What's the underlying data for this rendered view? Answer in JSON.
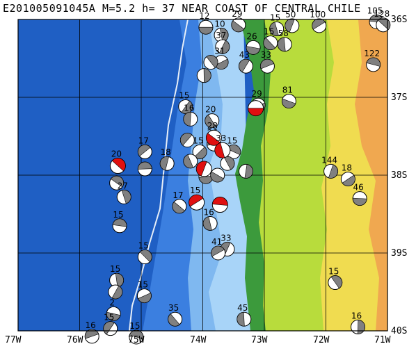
{
  "title": "E201005091045A M=5.2 h= 37 NEAR COAST OF CENTRAL CHILE",
  "x_ticks": [
    "77W",
    "76W",
    "75W",
    "74W",
    "73W",
    "72W",
    "71W"
  ],
  "y_ticks": [
    "36S",
    "37S",
    "38S",
    "39S",
    "40S"
  ],
  "colors": {
    "deep_ocean": "#1f5fc4",
    "mid_ocean": "#3b7fe0",
    "shelf": "#7fb8f0",
    "coast_shelf": "#a8d4f8",
    "lowland": "#3c9a3c",
    "plain": "#b8dc3c",
    "hills": "#f0dc50",
    "mountains": "#f0a850",
    "event": "#e01010",
    "cmt_dark": "#808080"
  },
  "events": [
    {
      "lon": -73.14,
      "lat": -37.14,
      "depth": "",
      "main": true
    },
    {
      "lon": -73.82,
      "lat": -37.52,
      "depth": "28",
      "main": true
    },
    {
      "lon": -73.68,
      "lat": -37.68,
      "depth": "33",
      "main": true
    },
    {
      "lon": -73.98,
      "lat": -37.92,
      "depth": "",
      "main": true
    },
    {
      "lon": -74.1,
      "lat": -38.35,
      "depth": "15",
      "main": true
    },
    {
      "lon": -73.72,
      "lat": -38.38,
      "depth": "",
      "main": true
    },
    {
      "lon": -75.38,
      "lat": -37.88,
      "depth": "20",
      "main": true
    }
  ],
  "cmt": [
    {
      "lon": -73.95,
      "lat": -36.1,
      "depth": "12"
    },
    {
      "lon": -73.42,
      "lat": -36.07,
      "depth": "29"
    },
    {
      "lon": -72.8,
      "lat": -36.12,
      "depth": "15"
    },
    {
      "lon": -72.55,
      "lat": -36.08,
      "depth": "50"
    },
    {
      "lon": -72.11,
      "lat": -36.08,
      "depth": "100"
    },
    {
      "lon": -71.18,
      "lat": -36.03,
      "depth": "105"
    },
    {
      "lon": -71.07,
      "lat": -36.07,
      "depth": "128"
    },
    {
      "lon": -73.7,
      "lat": -36.2,
      "depth": "10"
    },
    {
      "lon": -73.68,
      "lat": -36.35,
      "depth": "37"
    },
    {
      "lon": -73.7,
      "lat": -36.55,
      "depth": "31"
    },
    {
      "lon": -73.18,
      "lat": -36.36,
      "depth": "26"
    },
    {
      "lon": -72.9,
      "lat": -36.3,
      "depth": "15"
    },
    {
      "lon": -72.67,
      "lat": -36.32,
      "depth": "58"
    },
    {
      "lon": -73.3,
      "lat": -36.6,
      "depth": "43"
    },
    {
      "lon": -72.95,
      "lat": -36.6,
      "depth": "33"
    },
    {
      "lon": -71.23,
      "lat": -36.58,
      "depth": "122"
    },
    {
      "lon": -73.87,
      "lat": -36.55,
      "depth": ""
    },
    {
      "lon": -73.98,
      "lat": -36.72,
      "depth": ""
    },
    {
      "lon": -74.28,
      "lat": -37.12,
      "depth": "15"
    },
    {
      "lon": -73.1,
      "lat": -37.1,
      "depth": "29"
    },
    {
      "lon": -72.6,
      "lat": -37.05,
      "depth": "81"
    },
    {
      "lon": -73.85,
      "lat": -37.3,
      "depth": "20"
    },
    {
      "lon": -74.2,
      "lat": -37.28,
      "depth": "16"
    },
    {
      "lon": -74.25,
      "lat": -37.55,
      "depth": ""
    },
    {
      "lon": -73.82,
      "lat": -37.6,
      "depth": "26"
    },
    {
      "lon": -73.5,
      "lat": -37.7,
      "depth": "15"
    },
    {
      "lon": -73.6,
      "lat": -37.85,
      "depth": ""
    },
    {
      "lon": -73.3,
      "lat": -37.95,
      "depth": ""
    },
    {
      "lon": -74.05,
      "lat": -37.7,
      "depth": "15"
    },
    {
      "lon": -73.95,
      "lat": -38.02,
      "depth": ""
    },
    {
      "lon": -73.76,
      "lat": -38.0,
      "depth": ""
    },
    {
      "lon": -74.2,
      "lat": -37.82,
      "depth": ""
    },
    {
      "lon": -74.58,
      "lat": -37.85,
      "depth": "18"
    },
    {
      "lon": -74.94,
      "lat": -37.7,
      "depth": "17"
    },
    {
      "lon": -74.94,
      "lat": -37.92,
      "depth": ""
    },
    {
      "lon": -75.4,
      "lat": -38.1,
      "depth": ""
    },
    {
      "lon": -75.28,
      "lat": -38.28,
      "depth": "27"
    },
    {
      "lon": -71.92,
      "lat": -37.95,
      "depth": "144"
    },
    {
      "lon": -71.64,
      "lat": -38.05,
      "depth": "18"
    },
    {
      "lon": -71.45,
      "lat": -38.3,
      "depth": "46"
    },
    {
      "lon": -74.38,
      "lat": -38.4,
      "depth": "17"
    },
    {
      "lon": -73.88,
      "lat": -38.62,
      "depth": "16"
    },
    {
      "lon": -73.6,
      "lat": -38.95,
      "depth": "33"
    },
    {
      "lon": -73.75,
      "lat": -39.0,
      "depth": "41"
    },
    {
      "lon": -75.35,
      "lat": -38.65,
      "depth": "15"
    },
    {
      "lon": -74.94,
      "lat": -39.05,
      "depth": "15"
    },
    {
      "lon": -75.4,
      "lat": -39.35,
      "depth": "15"
    },
    {
      "lon": -75.42,
      "lat": -39.5,
      "depth": ""
    },
    {
      "lon": -74.95,
      "lat": -39.55,
      "depth": "15"
    },
    {
      "lon": -75.45,
      "lat": -39.78,
      "depth": "2"
    },
    {
      "lon": -74.45,
      "lat": -39.85,
      "depth": "35"
    },
    {
      "lon": -73.33,
      "lat": -39.85,
      "depth": "45"
    },
    {
      "lon": -75.5,
      "lat": -39.97,
      "depth": "15"
    },
    {
      "lon": -75.8,
      "lat": -40.07,
      "depth": "16"
    },
    {
      "lon": -75.08,
      "lat": -40.08,
      "depth": "15"
    },
    {
      "lon": -71.85,
      "lat": -39.38,
      "depth": "15"
    },
    {
      "lon": -71.48,
      "lat": -39.95,
      "depth": "16"
    }
  ]
}
